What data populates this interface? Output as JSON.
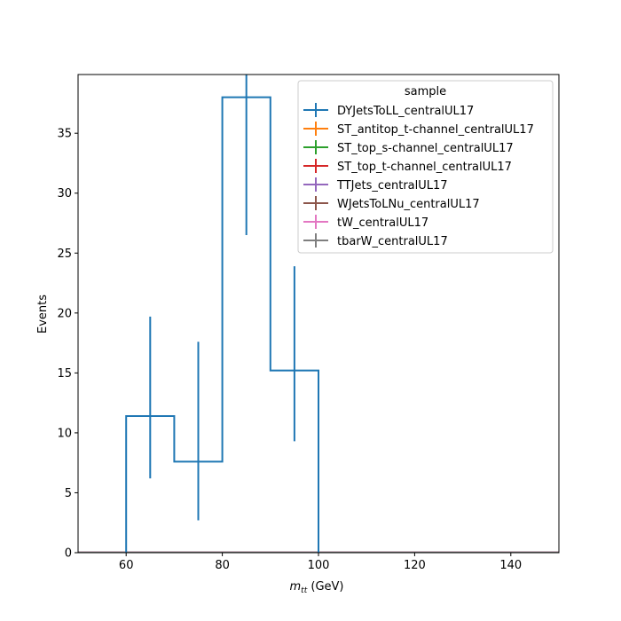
{
  "chart_data": {
    "type": "step-histogram",
    "xlabel_main": "m",
    "xlabel_sub": "tt",
    "xlabel_unit": " (GeV)",
    "ylabel": "Events",
    "xlim": [
      50,
      150
    ],
    "ylim": [
      0,
      39.9
    ],
    "xticks": [
      60,
      80,
      100,
      120,
      140
    ],
    "yticks": [
      0,
      5,
      10,
      15,
      20,
      25,
      30,
      35
    ],
    "bin_edges": [
      60,
      70,
      80,
      90,
      100
    ],
    "legend": {
      "title": "sample",
      "placement": "upper-right",
      "entries": [
        {
          "name": "DYJetsToLL_centralUL17",
          "color": "#1f77b4"
        },
        {
          "name": "ST_antitop_t-channel_centralUL17",
          "color": "#ff7f0e"
        },
        {
          "name": "ST_top_s-channel_centralUL17",
          "color": "#2ca02c"
        },
        {
          "name": "ST_top_t-channel_centralUL17",
          "color": "#d62728"
        },
        {
          "name": "TTJets_centralUL17",
          "color": "#9467bd"
        },
        {
          "name": "WJetsToLNu_centralUL17",
          "color": "#8c564b"
        },
        {
          "name": "tW_centralUL17",
          "color": "#e377c2"
        },
        {
          "name": "tbarW_centralUL17",
          "color": "#7f7f7f"
        }
      ]
    },
    "series": [
      {
        "name": "DYJetsToLL_centralUL17",
        "color": "#1f77b4",
        "values": [
          11.4,
          7.6,
          38.0,
          15.2
        ],
        "err_low": [
          6.2,
          2.7,
          26.5,
          9.3
        ],
        "err_high": [
          19.7,
          17.6,
          39.9,
          23.9
        ]
      },
      {
        "name": "ST_antitop_t-channel_centralUL17",
        "color": "#ff7f0e",
        "values": [
          0,
          0,
          0,
          0
        ]
      },
      {
        "name": "ST_top_s-channel_centralUL17",
        "color": "#2ca02c",
        "values": [
          0,
          0,
          0,
          0
        ]
      },
      {
        "name": "ST_top_t-channel_centralUL17",
        "color": "#d62728",
        "values": [
          0,
          0,
          0,
          0
        ]
      },
      {
        "name": "TTJets_centralUL17",
        "color": "#9467bd",
        "values": [
          0,
          0,
          0,
          0
        ]
      },
      {
        "name": "WJetsToLNu_centralUL17",
        "color": "#8c564b",
        "values": [
          0,
          0,
          0,
          0
        ]
      },
      {
        "name": "tW_centralUL17",
        "color": "#e377c2",
        "values": [
          0,
          0,
          0,
          0
        ]
      },
      {
        "name": "tbarW_centralUL17",
        "color": "#7f7f7f",
        "values": [
          0,
          0,
          0,
          0
        ]
      }
    ]
  }
}
